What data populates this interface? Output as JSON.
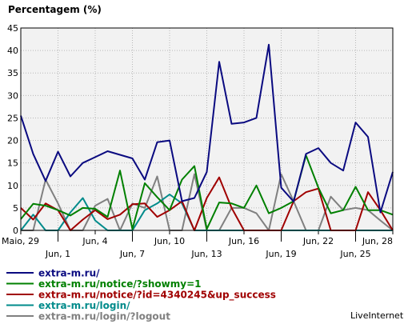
{
  "chart_data": {
    "type": "line",
    "title": "Percentagem (%)",
    "ylim": [
      0,
      45
    ],
    "yticks": [
      0,
      5,
      10,
      15,
      20,
      25,
      30,
      35,
      40,
      45
    ],
    "xrange": [
      0,
      30
    ],
    "grid": true,
    "x_ticks": [
      {
        "x": 0,
        "label": "Maio, 29",
        "row": 0
      },
      {
        "x": 3,
        "label": "Jun, 1",
        "row": 1
      },
      {
        "x": 6,
        "label": "Jun, 4",
        "row": 0
      },
      {
        "x": 9,
        "label": "Jun, 7",
        "row": 1
      },
      {
        "x": 12,
        "label": "Jun, 10",
        "row": 0
      },
      {
        "x": 15,
        "label": "Jun, 13",
        "row": 1
      },
      {
        "x": 18,
        "label": "Jun, 16",
        "row": 0
      },
      {
        "x": 21,
        "label": "Jun, 19",
        "row": 1
      },
      {
        "x": 24,
        "label": "Jun, 22",
        "row": 0
      },
      {
        "x": 27,
        "label": "Jun, 25",
        "row": 1
      },
      {
        "x": 30,
        "label": "Jun, 28",
        "row": 0
      }
    ],
    "series": [
      {
        "name": "extra-m.ru/",
        "color": "#0a0a80",
        "values": [
          25.5,
          17,
          11,
          17.5,
          12,
          15,
          16.3,
          17.6,
          16.8,
          16,
          11.3,
          19.6,
          20,
          6.5,
          7.2,
          13,
          37.5,
          23.7,
          24,
          25,
          41.3,
          9.5,
          6.4,
          17,
          18.3,
          15,
          13.3,
          24,
          20.8,
          4,
          13
        ]
      },
      {
        "name": "extra-m.ru/notice/?showmy=1",
        "color": "#008000",
        "values": [
          2.5,
          5.9,
          5.5,
          4.5,
          3.3,
          5,
          4.8,
          3,
          13.3,
          0.3,
          10.5,
          7.4,
          4.5,
          11.3,
          14.3,
          0.3,
          6.2,
          6,
          5,
          10,
          3.8,
          5,
          6.5,
          16.7,
          9.5,
          3.8,
          4.5,
          9.7,
          4.5,
          4.5,
          3.5
        ]
      },
      {
        "name": "extra-m.ru/notice/?id=4340245&up_success",
        "color": "#a00000",
        "values": [
          5,
          2.4,
          6,
          4.5,
          0,
          2.4,
          4.5,
          2.5,
          3.5,
          5.8,
          6,
          3,
          4.5,
          6.5,
          0,
          7.2,
          11.8,
          5,
          0,
          0,
          0,
          0,
          6.5,
          8.5,
          9.3,
          0,
          0,
          0,
          8.5,
          4.5,
          0
        ]
      },
      {
        "name": "extra-m.ru/login/",
        "color": "#008b8b",
        "values": [
          0,
          3.5,
          0,
          0,
          4,
          7.2,
          2.2,
          0,
          0,
          0,
          4.5,
          6,
          8,
          6,
          0,
          0,
          0,
          0,
          0,
          0,
          0,
          0,
          0,
          0,
          0,
          0,
          0,
          0,
          0,
          0,
          0
        ]
      },
      {
        "name": "extra-m.ru/login/?logout",
        "color": "#808080",
        "values": [
          0,
          0,
          11.3,
          6,
          0,
          0,
          5.5,
          7,
          0,
          6,
          5,
          12,
          0,
          0,
          12.5,
          0,
          0,
          5,
          5,
          3.8,
          0,
          12.5,
          6.5,
          0,
          0,
          7.5,
          4.5,
          5,
          4.5,
          2.2,
          0
        ]
      }
    ]
  },
  "brand": "LiveInternet"
}
